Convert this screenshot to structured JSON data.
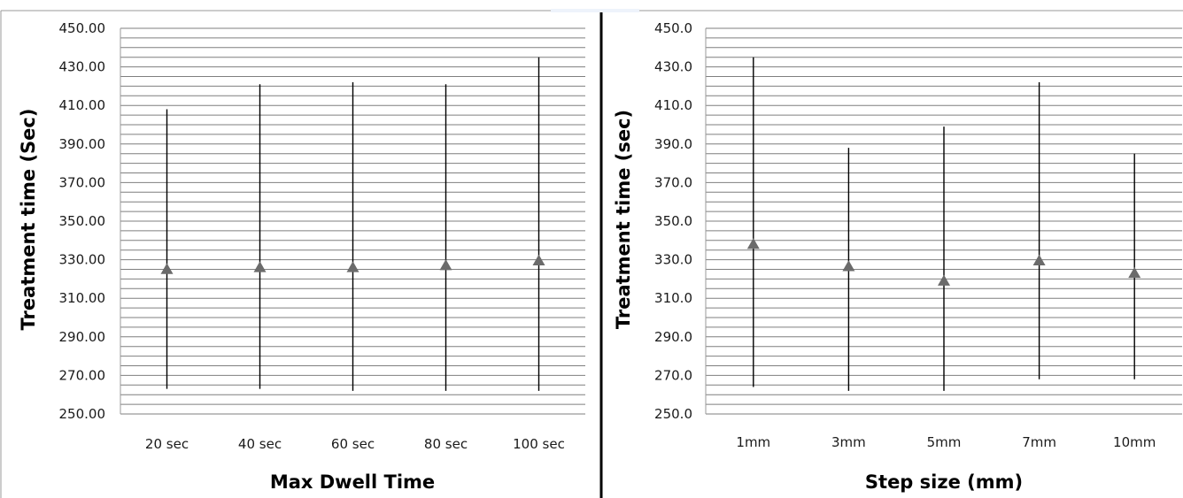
{
  "chart_data": [
    {
      "type": "scatter",
      "xlabel": "Max Dwell Time",
      "ylabel": "Treatment time (Sec)",
      "ylim": [
        250,
        450
      ],
      "y_ticks": [
        "250.00",
        "270.00",
        "290.00",
        "310.00",
        "330.00",
        "350.00",
        "370.00",
        "390.00",
        "410.00",
        "430.00",
        "450.00"
      ],
      "categories": [
        "20 sec",
        "40 sec",
        "60 sec",
        "80 sec",
        "100 sec"
      ],
      "values": [
        325,
        326,
        326,
        327,
        329.5
      ],
      "error_low": [
        263,
        263,
        262,
        262,
        262
      ],
      "error_high": [
        408,
        421,
        422,
        421,
        435
      ],
      "grid": true,
      "marker_color": "#6b6b6b"
    },
    {
      "type": "scatter",
      "xlabel": "Step size (mm)",
      "ylabel": "Treatment time (sec)",
      "ylim": [
        250,
        450
      ],
      "y_ticks": [
        "250.0",
        "270.0",
        "290.0",
        "310.0",
        "330.0",
        "350.0",
        "370.0",
        "390.0",
        "410.0",
        "430.0",
        "450.0"
      ],
      "categories": [
        "1mm",
        "3mm",
        "5mm",
        "7mm",
        "10mm"
      ],
      "values": [
        338,
        326.5,
        319,
        329.5,
        323
      ],
      "error_low": [
        264,
        262,
        262,
        268,
        268
      ],
      "error_high": [
        435,
        388,
        399,
        422,
        385
      ],
      "grid": true,
      "marker_color": "#6b6b6b"
    }
  ]
}
